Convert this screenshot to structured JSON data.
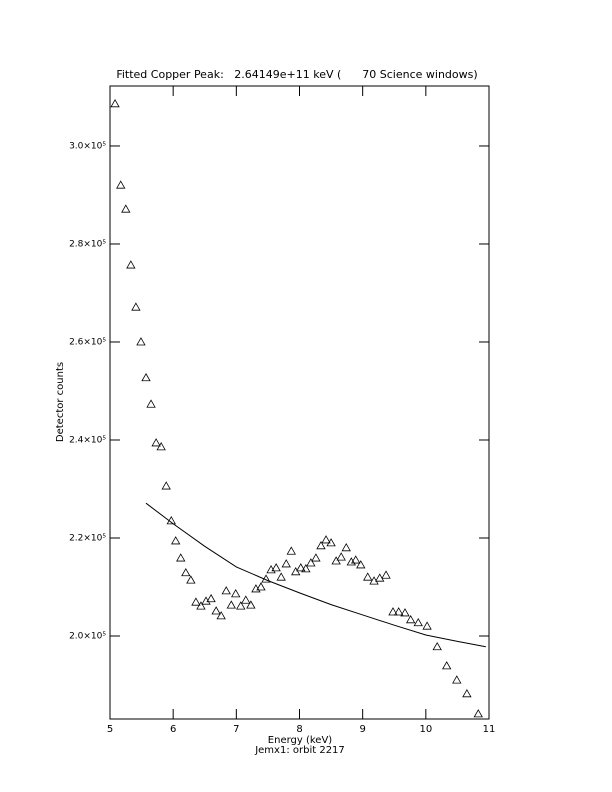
{
  "chart_data": {
    "type": "scatter",
    "title": "Fitted Copper Peak:   2.64149e+11 keV (      70 Science windows)",
    "xlabel": "Energy (keV)",
    "subtitle": "Jemx1: orbit 2217",
    "ylabel": "Detector counts",
    "xlim": [
      5,
      11
    ],
    "xticks": [
      5,
      6,
      7,
      8,
      9,
      10,
      11
    ],
    "ylim": [
      183060,
      312240
    ],
    "yticks": [
      {
        "value": 200000,
        "label": "2.0×10⁵"
      },
      {
        "value": 220000,
        "label": "2.2×10⁵"
      },
      {
        "value": 240000,
        "label": "2.4×10⁵"
      },
      {
        "value": 260000,
        "label": "2.6×10⁵"
      },
      {
        "value": 280000,
        "label": "2.8×10⁵"
      },
      {
        "value": 300000,
        "label": "3.0×10⁵"
      }
    ],
    "color": "#000000",
    "x": [
      5.08,
      5.17,
      5.25,
      5.33,
      5.41,
      5.49,
      5.57,
      5.65,
      5.73,
      5.81,
      5.89,
      5.97,
      6.04,
      6.12,
      6.2,
      6.28,
      6.36,
      6.44,
      6.52,
      6.6,
      6.68,
      6.76,
      6.84,
      6.92,
      6.99,
      7.07,
      7.15,
      7.23,
      7.31,
      7.39,
      7.47,
      7.55,
      7.63,
      7.71,
      7.79,
      7.87,
      7.94,
      8.02,
      8.1,
      8.18,
      8.26,
      8.34,
      8.42,
      8.5,
      8.58,
      8.66,
      8.74,
      8.82,
      8.89,
      8.97,
      9.08,
      9.18,
      9.27,
      9.37,
      9.48,
      9.57,
      9.67,
      9.76,
      9.88,
      10.02,
      10.18,
      10.33,
      10.49,
      10.65,
      10.83
    ],
    "values": [
      308600,
      292000,
      287100,
      275700,
      267100,
      260000,
      252700,
      247300,
      239400,
      238600,
      230600,
      223500,
      219400,
      215900,
      212900,
      211400,
      206900,
      206100,
      207100,
      207600,
      205100,
      204100,
      209200,
      206300,
      208600,
      206100,
      207300,
      206300,
      209600,
      210000,
      211600,
      213500,
      213900,
      212000,
      214700,
      217300,
      213100,
      213900,
      213700,
      214900,
      215900,
      218400,
      219600,
      219000,
      215300,
      216100,
      218000,
      215100,
      215500,
      214500,
      212000,
      211200,
      211800,
      212400,
      204900,
      204900,
      204700,
      203300,
      202700,
      202000,
      197800,
      193900,
      191000,
      188200,
      184100
    ],
    "fit": {
      "x": [
        5.57,
        6.0,
        6.5,
        7.0,
        7.5,
        8.0,
        8.5,
        9.0,
        9.5,
        10.0,
        10.5,
        10.95
      ],
      "values": [
        227100,
        222900,
        218300,
        214100,
        211300,
        208800,
        206400,
        204300,
        202200,
        200200,
        198900,
        197800
      ]
    }
  }
}
